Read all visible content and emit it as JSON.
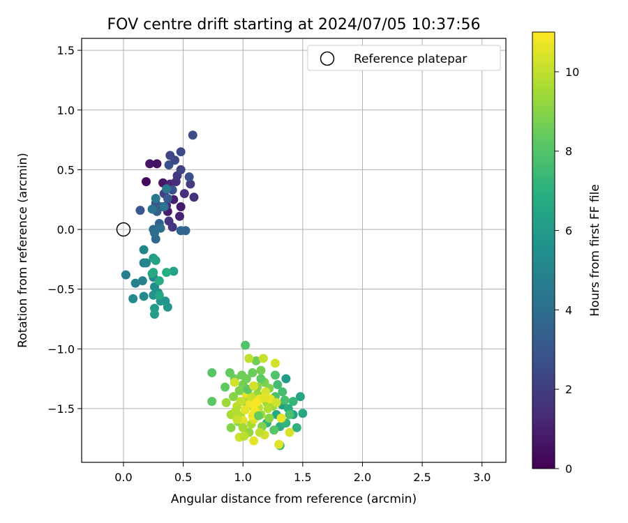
{
  "chart_data": {
    "type": "scatter",
    "title": "FOV centre drift starting at 2024/07/05 10:37:56",
    "xlabel": "Angular distance from reference (arcmin)",
    "ylabel": "Rotation from reference (arcmin)",
    "xlim": [
      -0.35,
      3.2
    ],
    "ylim": [
      -1.95,
      1.6
    ],
    "xticks": [
      0.0,
      0.5,
      1.0,
      1.5,
      2.0,
      2.5,
      3.0
    ],
    "xtick_labels": [
      "0.0",
      "0.5",
      "1.0",
      "1.5",
      "2.0",
      "2.5",
      "3.0"
    ],
    "yticks": [
      -1.5,
      -1.0,
      -0.5,
      0.0,
      0.5,
      1.0,
      1.5
    ],
    "ytick_labels": [
      "−1.5",
      "−1.0",
      "−0.5",
      "0.0",
      "0.5",
      "1.0",
      "1.5"
    ],
    "grid": true,
    "legend": {
      "position": "top-right",
      "entries": [
        "Reference platepar"
      ]
    },
    "reference_point": {
      "x": 0.0,
      "y": 0.0
    },
    "colorbar": {
      "label": "Hours from first FF file",
      "colormap": "viridis",
      "range": [
        0,
        11
      ],
      "ticks": [
        0,
        2,
        4,
        6,
        8,
        10
      ],
      "tick_labels": [
        "0",
        "2",
        "4",
        "6",
        "8",
        "10"
      ]
    },
    "points": [
      [
        0.19,
        0.4,
        0.3
      ],
      [
        0.28,
        0.55,
        0.5
      ],
      [
        0.22,
        0.55,
        0.6
      ],
      [
        0.33,
        0.39,
        0.7
      ],
      [
        0.48,
        0.19,
        0.8
      ],
      [
        0.37,
        0.15,
        0.9
      ],
      [
        0.42,
        0.25,
        1.0
      ],
      [
        0.47,
        0.11,
        1.1
      ],
      [
        0.39,
        0.38,
        1.2
      ],
      [
        0.36,
        0.2,
        1.3
      ],
      [
        0.44,
        0.4,
        1.4
      ],
      [
        0.51,
        0.3,
        1.5
      ],
      [
        0.59,
        0.27,
        1.6
      ],
      [
        0.38,
        0.07,
        1.7
      ],
      [
        0.41,
        0.02,
        1.8
      ],
      [
        0.45,
        0.45,
        1.9
      ],
      [
        0.56,
        0.38,
        2.0
      ],
      [
        0.34,
        0.3,
        2.1
      ],
      [
        0.48,
        0.5,
        2.2
      ],
      [
        0.39,
        0.62,
        2.3
      ],
      [
        0.43,
        0.58,
        2.4
      ],
      [
        0.48,
        0.65,
        2.5
      ],
      [
        0.58,
        0.79,
        2.6
      ],
      [
        0.55,
        0.44,
        2.7
      ],
      [
        0.38,
        0.54,
        2.8
      ],
      [
        0.41,
        0.33,
        2.9
      ],
      [
        0.27,
        0.22,
        3.0
      ],
      [
        0.14,
        0.16,
        3.1
      ],
      [
        0.37,
        0.26,
        3.2
      ],
      [
        0.32,
        0.19,
        3.3
      ],
      [
        0.28,
        0.15,
        3.4
      ],
      [
        0.3,
        0.05,
        3.5
      ],
      [
        0.48,
        -0.01,
        3.6
      ],
      [
        0.52,
        -0.01,
        3.7
      ],
      [
        0.27,
        -0.08,
        3.8
      ],
      [
        0.25,
        0.0,
        3.9
      ],
      [
        0.26,
        -0.03,
        4.0
      ],
      [
        0.31,
        0.01,
        4.1
      ],
      [
        0.24,
        0.17,
        4.2
      ],
      [
        0.34,
        0.19,
        4.3
      ],
      [
        0.36,
        0.34,
        4.4
      ],
      [
        0.27,
        0.26,
        4.5
      ],
      [
        0.17,
        -0.28,
        4.6
      ],
      [
        0.02,
        -0.38,
        4.7
      ],
      [
        0.1,
        -0.45,
        4.8
      ],
      [
        0.16,
        -0.43,
        4.9
      ],
      [
        0.19,
        -0.28,
        5.0
      ],
      [
        0.17,
        -0.17,
        5.0
      ],
      [
        0.25,
        -0.4,
        5.1
      ],
      [
        0.17,
        -0.56,
        5.2
      ],
      [
        0.08,
        -0.58,
        5.3
      ],
      [
        0.26,
        -0.48,
        5.4
      ],
      [
        0.29,
        -0.53,
        5.5
      ],
      [
        0.25,
        -0.55,
        5.6
      ],
      [
        0.31,
        -0.6,
        5.7
      ],
      [
        0.35,
        -0.6,
        5.8
      ],
      [
        0.37,
        -0.65,
        5.9
      ],
      [
        0.26,
        -0.66,
        6.0
      ],
      [
        0.26,
        -0.71,
        6.1
      ],
      [
        0.25,
        -0.24,
        6.2
      ],
      [
        0.27,
        -0.26,
        6.3
      ],
      [
        0.42,
        -0.35,
        6.4
      ],
      [
        0.24,
        -0.37,
        6.5
      ],
      [
        0.3,
        -0.55,
        6.6
      ],
      [
        0.25,
        -0.36,
        6.7
      ],
      [
        0.3,
        -0.43,
        6.8
      ],
      [
        0.36,
        -0.36,
        6.9
      ],
      [
        1.36,
        -1.25,
        6.0
      ],
      [
        1.33,
        -1.47,
        6.2
      ],
      [
        1.42,
        -1.55,
        6.4
      ],
      [
        1.48,
        -1.4,
        6.5
      ],
      [
        1.5,
        -1.54,
        6.6
      ],
      [
        1.28,
        -1.55,
        6.7
      ],
      [
        1.38,
        -1.5,
        6.9
      ],
      [
        1.31,
        -1.65,
        7.0
      ],
      [
        1.45,
        -1.66,
        7.1
      ],
      [
        1.2,
        -1.62,
        7.2
      ],
      [
        1.42,
        -1.44,
        7.3
      ],
      [
        1.31,
        -1.81,
        7.4
      ],
      [
        1.24,
        -1.45,
        7.5
      ],
      [
        1.29,
        -1.3,
        7.6
      ],
      [
        1.35,
        -1.43,
        7.7
      ],
      [
        1.39,
        -1.55,
        7.8
      ],
      [
        1.27,
        -1.4,
        7.9
      ],
      [
        1.02,
        -0.97,
        8.0
      ],
      [
        0.74,
        -1.2,
        8.1
      ],
      [
        0.74,
        -1.44,
        8.2
      ],
      [
        0.85,
        -1.32,
        8.3
      ],
      [
        0.89,
        -1.2,
        8.4
      ],
      [
        0.93,
        -1.25,
        8.5
      ],
      [
        1.11,
        -1.1,
        8.6
      ],
      [
        1.0,
        -1.3,
        8.7
      ],
      [
        1.18,
        -1.28,
        8.8
      ],
      [
        1.22,
        -1.33,
        8.9
      ],
      [
        0.9,
        -1.66,
        9.0
      ],
      [
        0.96,
        -1.61,
        9.1
      ],
      [
        1.04,
        -1.48,
        9.2
      ],
      [
        1.12,
        -1.38,
        9.3
      ],
      [
        1.15,
        -1.55,
        9.4
      ],
      [
        1.2,
        -1.45,
        9.5
      ],
      [
        1.07,
        -1.63,
        9.6
      ],
      [
        0.98,
        -1.56,
        9.7
      ],
      [
        1.03,
        -1.43,
        9.8
      ],
      [
        1.13,
        -1.49,
        9.9
      ],
      [
        1.05,
        -1.08,
        10.0
      ],
      [
        1.17,
        -1.08,
        10.1
      ],
      [
        0.93,
        -1.28,
        10.2
      ],
      [
        1.27,
        -1.12,
        10.3
      ],
      [
        1.09,
        -1.59,
        10.4
      ],
      [
        1.0,
        -1.6,
        10.5
      ],
      [
        1.02,
        -1.37,
        10.6
      ],
      [
        1.14,
        -1.42,
        10.7
      ],
      [
        1.06,
        -1.46,
        10.8
      ],
      [
        1.1,
        -1.52,
        10.9
      ],
      [
        1.3,
        -1.8,
        10.5
      ],
      [
        1.39,
        -1.7,
        10.4
      ],
      [
        1.09,
        -1.77,
        10.6
      ],
      [
        1.18,
        -1.72,
        10.3
      ],
      [
        0.97,
        -1.74,
        10.2
      ],
      [
        0.95,
        -1.48,
        9.9
      ],
      [
        0.9,
        -1.55,
        9.6
      ],
      [
        0.86,
        -1.45,
        9.4
      ],
      [
        0.92,
        -1.4,
        9.0
      ],
      [
        0.97,
        -1.35,
        8.8
      ],
      [
        1.03,
        -1.25,
        8.6
      ],
      [
        1.08,
        -1.2,
        8.5
      ],
      [
        1.15,
        -1.18,
        8.7
      ],
      [
        1.12,
        -1.32,
        9.1
      ],
      [
        1.25,
        -1.48,
        9.3
      ],
      [
        1.22,
        -1.58,
        9.0
      ],
      [
        1.16,
        -1.65,
        8.9
      ],
      [
        1.05,
        -1.7,
        9.2
      ],
      [
        1.0,
        -1.66,
        9.5
      ],
      [
        0.94,
        -1.52,
        9.8
      ],
      [
        1.07,
        -1.4,
        10.1
      ],
      [
        1.19,
        -1.36,
        10.4
      ],
      [
        1.23,
        -1.42,
        10.7
      ],
      [
        1.11,
        -1.45,
        10.9
      ],
      [
        1.08,
        -1.56,
        10.8
      ],
      [
        1.02,
        -1.51,
        10.6
      ],
      [
        0.98,
        -1.44,
        10.0
      ],
      [
        1.15,
        -1.25,
        8.3
      ],
      [
        1.27,
        -1.22,
        8.0
      ],
      [
        1.33,
        -1.36,
        7.7
      ],
      [
        1.36,
        -1.62,
        7.2
      ],
      [
        1.26,
        -1.68,
        8.1
      ],
      [
        1.13,
        -1.56,
        8.4
      ],
      [
        1.04,
        -1.34,
        8.2
      ],
      [
        0.99,
        -1.22,
        8.6
      ],
      [
        1.21,
        -1.5,
        9.7
      ],
      [
        1.28,
        -1.45,
        10.2
      ],
      [
        1.18,
        -1.41,
        10.5
      ],
      [
        1.09,
        -1.31,
        10.3
      ],
      [
        0.95,
        -1.59,
        10.1
      ],
      [
        1.01,
        -1.73,
        9.9
      ],
      [
        1.14,
        -1.7,
        10.0
      ],
      [
        1.32,
        -1.58,
        10.7
      ]
    ]
  }
}
